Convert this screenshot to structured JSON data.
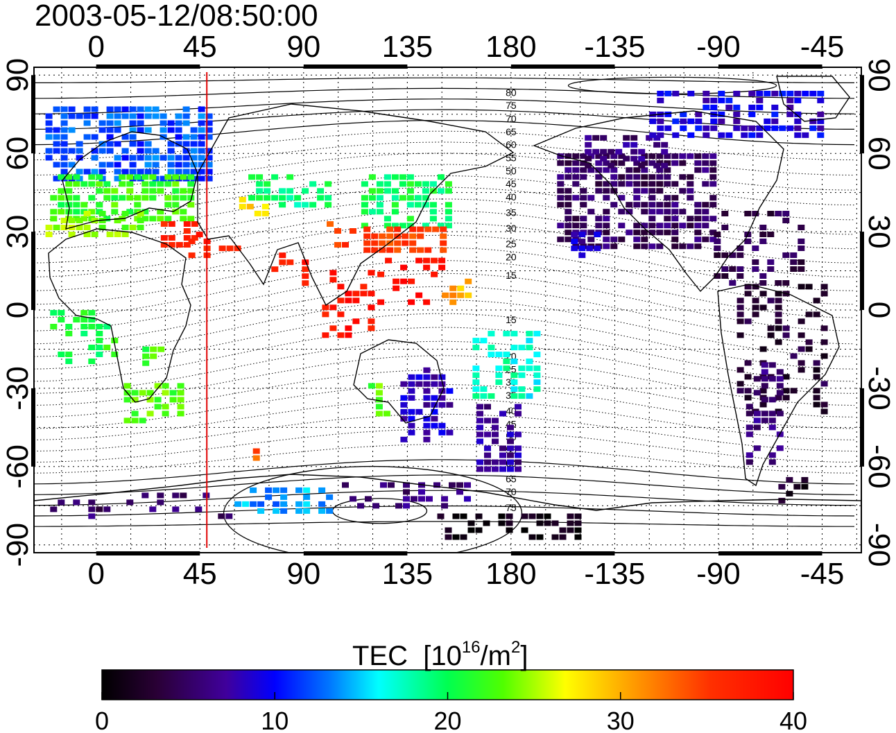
{
  "title": "2003-05-12/08:50:00",
  "chart_data": {
    "type": "heatmap",
    "projection": "equirectangular",
    "lon_range": [
      -27,
      332
    ],
    "lat_range": [
      -93,
      93
    ],
    "x_ticks": [
      "0",
      "45",
      "90",
      "135",
      "180",
      "-135",
      "-90",
      "-45"
    ],
    "x_tick_values": [
      0,
      45,
      90,
      135,
      180,
      225,
      270,
      315
    ],
    "y_ticks": [
      "90",
      "60",
      "30",
      "0",
      "-30",
      "-60",
      "-90"
    ],
    "y_tick_values": [
      90,
      60,
      30,
      0,
      -30,
      -60,
      -90
    ],
    "grid": "dotted, 15 degree",
    "marker_longitude": 48,
    "marker_color": "#e00000",
    "contour_labels": [
      {
        "lon": 180,
        "lat": 82,
        "text": "80"
      },
      {
        "lon": 180,
        "lat": 77,
        "text": "75"
      },
      {
        "lon": 180,
        "lat": 72,
        "text": "70"
      },
      {
        "lon": 180,
        "lat": 67,
        "text": "65"
      },
      {
        "lon": 180,
        "lat": 62,
        "text": "60"
      },
      {
        "lon": 180,
        "lat": 57,
        "text": "55"
      },
      {
        "lon": 180,
        "lat": 52,
        "text": "50"
      },
      {
        "lon": 180,
        "lat": 47,
        "text": "45"
      },
      {
        "lon": 180,
        "lat": 42,
        "text": "40"
      },
      {
        "lon": 180,
        "lat": 36,
        "text": "35"
      },
      {
        "lon": 180,
        "lat": 30,
        "text": "30"
      },
      {
        "lon": 180,
        "lat": 24,
        "text": "25"
      },
      {
        "lon": 180,
        "lat": 19,
        "text": "20"
      },
      {
        "lon": 180,
        "lat": 12,
        "text": "15"
      },
      {
        "lon": 180,
        "lat": -5,
        "text": "15"
      },
      {
        "lon": 180,
        "lat": -19,
        "text": "20"
      },
      {
        "lon": 180,
        "lat": -24,
        "text": "25"
      },
      {
        "lon": 180,
        "lat": -29,
        "text": "30"
      },
      {
        "lon": 180,
        "lat": -34,
        "text": "35"
      },
      {
        "lon": 180,
        "lat": -40,
        "text": "40"
      },
      {
        "lon": 180,
        "lat": -45,
        "text": "45"
      },
      {
        "lon": 180,
        "lat": -50,
        "text": "50"
      },
      {
        "lon": 180,
        "lat": -55,
        "text": "55"
      },
      {
        "lon": 180,
        "lat": -60,
        "text": "60"
      },
      {
        "lon": 180,
        "lat": -66,
        "text": "65"
      },
      {
        "lon": 180,
        "lat": -71,
        "text": "70"
      },
      {
        "lon": 180,
        "lat": -77,
        "text": "75"
      }
    ],
    "tec_regions": [
      {
        "lon": [
          -22,
          48
        ],
        "lat": [
          50,
          78
        ],
        "tec": 12,
        "density": 0.7
      },
      {
        "lon": [
          -20,
          40
        ],
        "lat": [
          36,
          52
        ],
        "tec": 22,
        "density": 0.75
      },
      {
        "lon": [
          -22,
          20
        ],
        "lat": [
          28,
          38
        ],
        "tec": 24,
        "density": 0.5
      },
      {
        "lon": [
          28,
          42
        ],
        "lat": [
          24,
          34
        ],
        "tec": 37,
        "density": 0.7
      },
      {
        "lon": [
          40,
          60
        ],
        "lat": [
          22,
          30
        ],
        "tec": 37,
        "density": 0.3
      },
      {
        "lon": [
          66,
          100
        ],
        "lat": [
          40,
          52
        ],
        "tec": 19,
        "density": 0.45
      },
      {
        "lon": [
          62,
          72
        ],
        "lat": [
          38,
          46
        ],
        "tec": 29,
        "density": 0.5
      },
      {
        "lon": [
          115,
          152
        ],
        "lat": [
          32,
          52
        ],
        "tec": 20,
        "density": 0.65
      },
      {
        "lon": [
          116,
          150
        ],
        "lat": [
          24,
          32
        ],
        "tec": 35,
        "density": 0.75
      },
      {
        "lon": [
          100,
          112
        ],
        "lat": [
          26,
          34
        ],
        "tec": 35,
        "density": 0.35
      },
      {
        "lon": [
          76,
          92
        ],
        "lat": [
          10,
          22
        ],
        "tec": 38,
        "density": 0.35
      },
      {
        "lon": [
          98,
          120
        ],
        "lat": [
          -10,
          18
        ],
        "tec": 38,
        "density": 0.35
      },
      {
        "lon": [
          122,
          150
        ],
        "lat": [
          4,
          20
        ],
        "tec": 39,
        "density": 0.35
      },
      {
        "lon": [
          150,
          165
        ],
        "lat": [
          4,
          12
        ],
        "tec": 30,
        "density": 0.4
      },
      {
        "lon": [
          160,
          190
        ],
        "lat": [
          -32,
          -8
        ],
        "tec": 17,
        "density": 0.45
      },
      {
        "lon": [
          -20,
          8
        ],
        "lat": [
          -20,
          0
        ],
        "tec": 21,
        "density": 0.4
      },
      {
        "lon": [
          12,
          38
        ],
        "lat": [
          -42,
          -28
        ],
        "tec": 23,
        "density": 0.6
      },
      {
        "lon": [
          20,
          32
        ],
        "lat": [
          -20,
          -14
        ],
        "tec": 22,
        "density": 0.4
      },
      {
        "lon": [
          118,
          130
        ],
        "lat": [
          -40,
          -28
        ],
        "tec": 23,
        "density": 0.5
      },
      {
        "lon": [
          132,
          154
        ],
        "lat": [
          -50,
          -22
        ],
        "tec": 8,
        "density": 0.5
      },
      {
        "lon": [
          165,
          182
        ],
        "lat": [
          -60,
          -36
        ],
        "tec": 7,
        "density": 0.55
      },
      {
        "lon": [
          68,
          72
        ],
        "lat": [
          -58,
          -53
        ],
        "tec": 33,
        "density": 0.8
      },
      {
        "lon": [
          200,
          268
        ],
        "lat": [
          24,
          60
        ],
        "tec": 5,
        "density": 0.75
      },
      {
        "lon": [
          212,
          246
        ],
        "lat": [
          55,
          67
        ],
        "tec": 6,
        "density": 0.5
      },
      {
        "lon": [
          240,
          315
        ],
        "lat": [
          66,
          84
        ],
        "tec": 9,
        "density": 0.55
      },
      {
        "lon": [
          206,
          218
        ],
        "lat": [
          22,
          30
        ],
        "tec": 8,
        "density": 0.5
      },
      {
        "lon": [
          268,
          305
        ],
        "lat": [
          10,
          38
        ],
        "tec": 4,
        "density": 0.35
      },
      {
        "lon": [
          278,
          315
        ],
        "lat": [
          -40,
          10
        ],
        "tec": 3,
        "density": 0.25
      },
      {
        "lon": [
          282,
          296
        ],
        "lat": [
          -58,
          -20
        ],
        "tec": 6,
        "density": 0.45
      },
      {
        "lon": [
          296,
          306
        ],
        "lat": [
          -72,
          -64
        ],
        "tec": 2,
        "density": 0.6
      },
      {
        "lon": [
          -20,
          60
        ],
        "lat": [
          -80,
          -70
        ],
        "tec": 5,
        "density": 0.2
      },
      {
        "lon": [
          60,
          100
        ],
        "lat": [
          -76,
          -68
        ],
        "tec": 14,
        "density": 0.4
      },
      {
        "lon": [
          100,
          160
        ],
        "lat": [
          -74,
          -66
        ],
        "tec": 6,
        "density": 0.3
      },
      {
        "lon": [
          148,
          210
        ],
        "lat": [
          -86,
          -78
        ],
        "tec": 1,
        "density": 0.45
      }
    ],
    "colorbar": {
      "min": 0,
      "max": 40,
      "ticks": [
        "0",
        "10",
        "20",
        "30",
        "40"
      ],
      "label": "TEC",
      "unit_prefix": "[10",
      "unit_exp": "16",
      "unit_mid": "/m",
      "unit_exp2": "2",
      "unit_suffix": "]"
    }
  }
}
